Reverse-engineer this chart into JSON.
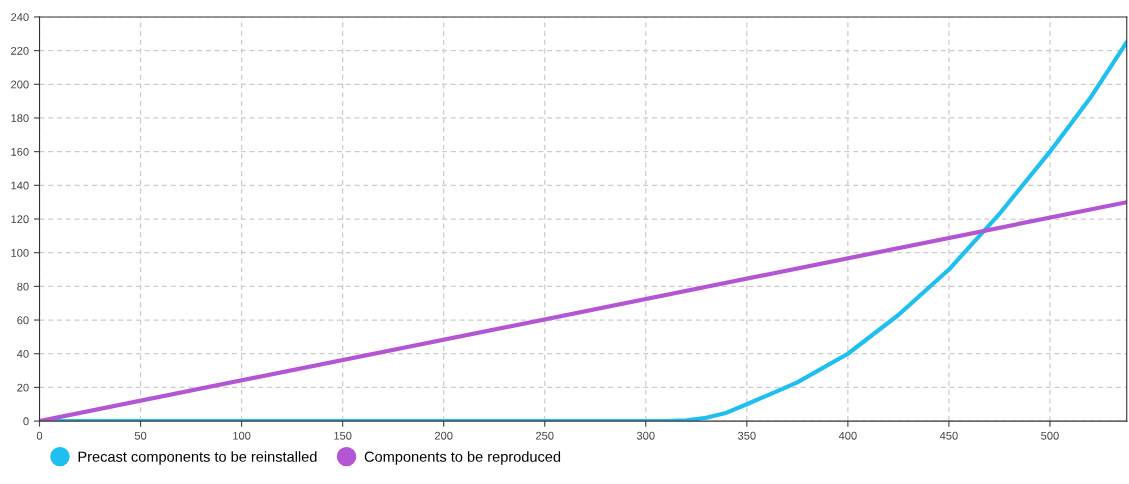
{
  "chart_data": {
    "type": "line",
    "xlim": [
      0,
      538
    ],
    "ylim": [
      0,
      240
    ],
    "xticks": [
      0,
      50,
      100,
      150,
      200,
      250,
      300,
      350,
      400,
      450,
      500
    ],
    "yticks": [
      0,
      20,
      40,
      60,
      80,
      100,
      120,
      140,
      160,
      180,
      200,
      220,
      240
    ],
    "grid": true,
    "legend": "bottom left",
    "marker": "none",
    "line_style": "solid",
    "series": [
      {
        "name": "Precast components to be reinstalled",
        "color": "#1fbfef",
        "x": [
          0,
          100,
          200,
          300,
          310,
          320,
          330,
          340,
          350,
          375,
          400,
          425,
          450,
          475,
          500,
          520,
          538
        ],
        "values": [
          0,
          0,
          0,
          0,
          0,
          0.5,
          2,
          5,
          10,
          23,
          40,
          63,
          90,
          123,
          160,
          192,
          225
        ]
      },
      {
        "name": "Components to be reproduced",
        "color": "#b455d6",
        "x": [
          0,
          538
        ],
        "values": [
          0,
          130
        ]
      }
    ]
  }
}
